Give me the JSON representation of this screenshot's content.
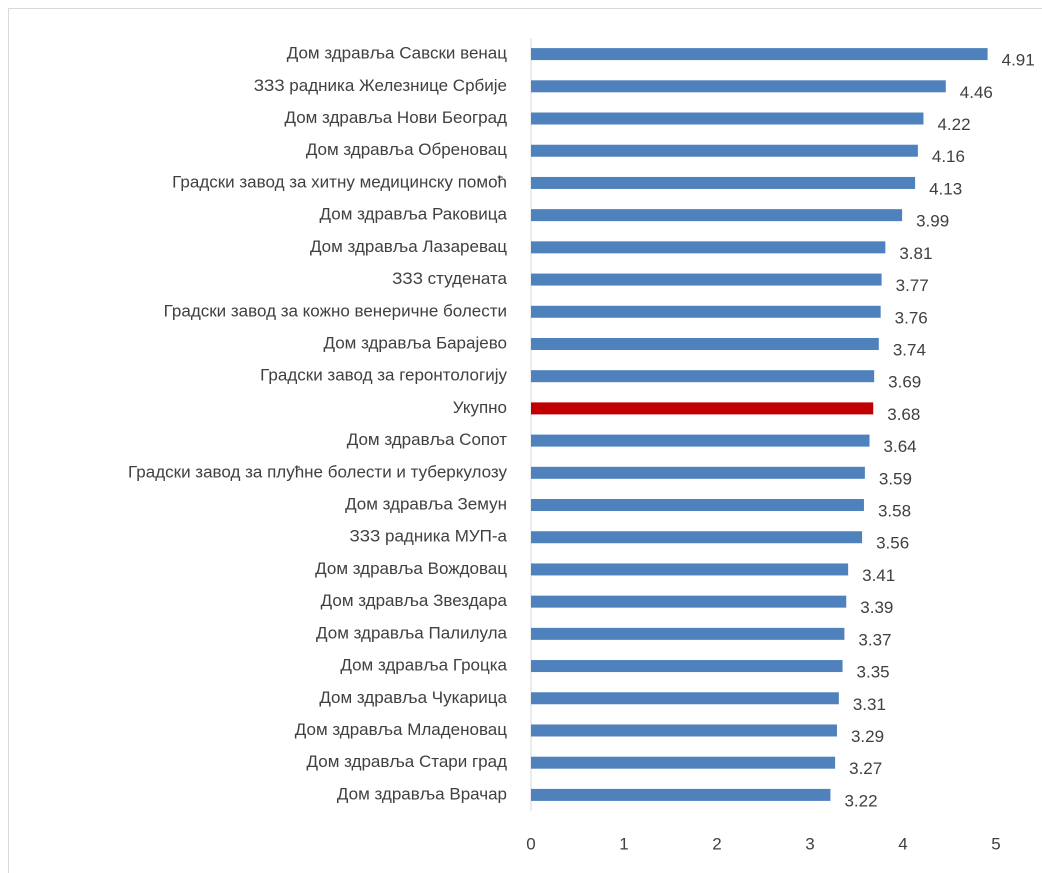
{
  "chart_data": {
    "type": "barh",
    "categories": [
      "Дом здравља Савски венац",
      "ЗЗЗ радника Железнице Србије",
      "Дом здравља Нови Београд",
      "Дом здравља Обреновац",
      "Градски завод за хитну медицинску помоћ",
      "Дом здравља Раковица",
      "Дом здравља Лазаревац",
      "ЗЗЗ студената",
      "Градски завод за кожно венеричне болести",
      "Дом здравља Барајево",
      "Градски завод за геронтологију",
      "Укупно",
      "Дом здравља Сопот",
      "Градски завод за плућне болести и туберкулозу",
      "Дом здравља Земун",
      "ЗЗЗ радника МУП-а",
      "Дом здравља Вождовац",
      "Дом здравља Звездара",
      "Дом здравља Палилула",
      "Дом здравља Гроцка",
      "Дом здравља Чукарица",
      "Дом здравља Младеновац",
      "Дом здравља Стари град",
      "Дом здравља Врачар"
    ],
    "values": [
      4.91,
      4.46,
      4.22,
      4.16,
      4.13,
      3.99,
      3.81,
      3.77,
      3.76,
      3.74,
      3.69,
      3.68,
      3.64,
      3.59,
      3.58,
      3.56,
      3.41,
      3.39,
      3.37,
      3.35,
      3.31,
      3.29,
      3.27,
      3.22
    ],
    "colors": [
      "#4f81bd",
      "#4f81bd",
      "#4f81bd",
      "#4f81bd",
      "#4f81bd",
      "#4f81bd",
      "#4f81bd",
      "#4f81bd",
      "#4f81bd",
      "#4f81bd",
      "#4f81bd",
      "#c00000",
      "#4f81bd",
      "#4f81bd",
      "#4f81bd",
      "#4f81bd",
      "#4f81bd",
      "#4f81bd",
      "#4f81bd",
      "#4f81bd",
      "#4f81bd",
      "#4f81bd",
      "#4f81bd",
      "#4f81bd"
    ],
    "xlim": [
      0,
      5
    ],
    "xticks": [
      0,
      1,
      2,
      3,
      4,
      5
    ],
    "grid": false
  }
}
